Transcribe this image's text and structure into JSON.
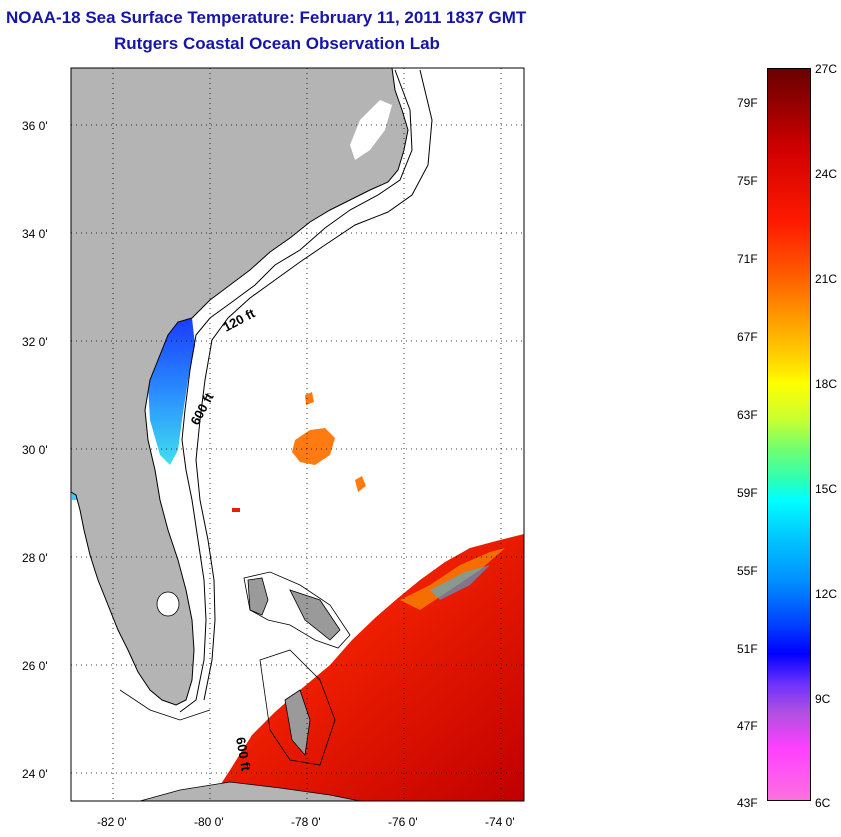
{
  "title": {
    "line1": "NOAA-18 Sea Surface Temperature:  February 11, 2011 1837 GMT",
    "line2": "Rutgers Coastal Ocean Observation Lab"
  },
  "map": {
    "lat_labels": [
      "36 0'",
      "34 0'",
      "32 0'",
      "30 0'",
      "28 0'",
      "26 0'",
      "24 0'"
    ],
    "lon_labels": [
      "-82 0'",
      "-80 0'",
      "-78 0'",
      "-76 0'",
      "-74 0'"
    ],
    "contour_labels": [
      "120 ft",
      "600 ft",
      "600 ft"
    ],
    "colors": {
      "land": "#b4b4b4",
      "ocean_nodata": "#ffffff",
      "warm_water": "#e81800",
      "cold_water": "#1e90ff"
    }
  },
  "colorbar": {
    "celsius": [
      "27C",
      "24C",
      "21C",
      "18C",
      "15C",
      "12C",
      "9C",
      "6C"
    ],
    "fahrenheit": [
      "79F",
      "75F",
      "71F",
      "67F",
      "63F",
      "59F",
      "55F",
      "51F",
      "47F",
      "43F"
    ]
  }
}
